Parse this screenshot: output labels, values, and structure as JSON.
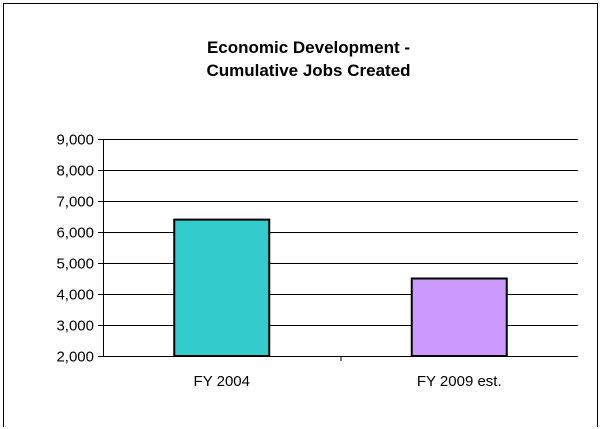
{
  "chart_data": {
    "type": "bar",
    "title_lines": [
      "Economic Development -",
      "Cumulative Jobs Created"
    ],
    "categories": [
      "FY 2004",
      "FY 2009 est."
    ],
    "values": [
      6400,
      4500
    ],
    "bar_colors": [
      "#33cccc",
      "#cc99ff"
    ],
    "ylim": [
      2000,
      9000
    ],
    "yticks": [
      2000,
      3000,
      4000,
      5000,
      6000,
      7000,
      8000,
      9000
    ],
    "ytick_labels": [
      "2,000",
      "3,000",
      "4,000",
      "5,000",
      "6,000",
      "7,000",
      "8,000",
      "9,000"
    ],
    "grid": true,
    "legend": "none"
  }
}
